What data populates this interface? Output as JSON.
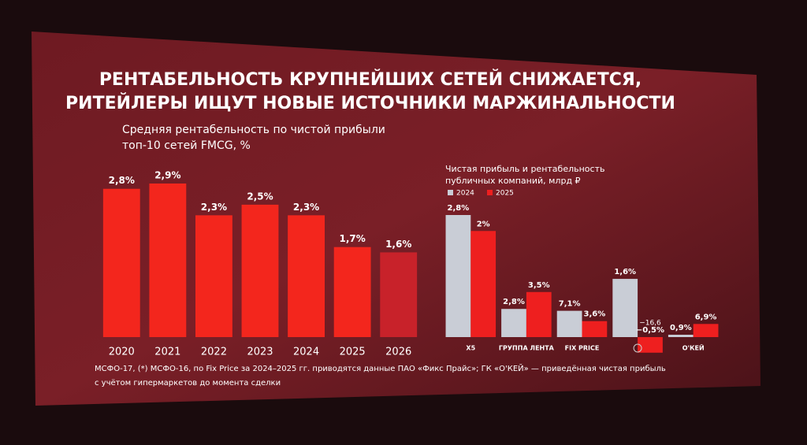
{
  "header": {
    "title": [
      "РЕНТАБЕЛЬНОСТЬ КРУПНЕЙШИХ СЕТЕЙ СНИЖАЕТСЯ,",
      "РИТЕЙЛЕРЫ ИЩУТ НОВЫЕ ИСТОЧНИКИ МАРЖИНАЛЬНОСТИ"
    ]
  },
  "chart_data": [
    {
      "type": "bar",
      "title": [
        "Средняя рентабельность по чистой прибыли",
        "топ-10 сетей FMCG, %"
      ],
      "categories": [
        "2020",
        "2021",
        "2022",
        "2023",
        "2024",
        "2025",
        "2026"
      ],
      "values": [
        2.8,
        2.9,
        2.3,
        2.5,
        2.3,
        1.7,
        1.6
      ],
      "value_labels": [
        "2,8%",
        "2,9%",
        "2,3%",
        "2,5%",
        "2,3%",
        "1,7%",
        "1,6%"
      ],
      "colors": [
        "#f3261d",
        "#f3261d",
        "#f3261d",
        "#f3261d",
        "#f3261d",
        "#f3261d",
        "#c8222a"
      ]
    },
    {
      "type": "grouped_bar",
      "title": [
        "Чистая прибыль и рентабельность",
        "публичных компаний, млрд ₽"
      ],
      "categories": [
        "X5",
        "ГРУППА ЛЕНТА",
        "FIX PRICE",
        null,
        "О'КЕЙ"
      ],
      "series": [
        {
          "name": "2024",
          "color": "#c9cdd6",
          "values": [
            130,
            30,
            28,
            62,
            2.5
          ],
          "value_labels": [
            null,
            null,
            null,
            null,
            null
          ],
          "margin_labels": [
            "2,8%",
            "2,8%",
            "7,1%",
            "1,6%",
            "0,9%"
          ]
        },
        {
          "name": "2025",
          "color": "#ee1f1f",
          "values": [
            113,
            48,
            17,
            -16.6,
            14
          ],
          "value_labels": [
            null,
            null,
            null,
            "−16,6",
            null
          ],
          "margin_labels": [
            "2%",
            "3,5%",
            "3,6%",
            "−0,5%",
            "6,9%"
          ]
        }
      ]
    }
  ],
  "footnote": [
    "МСФО-17, (*) МСФО-16, по Fix Price за 2024–2025 гг. приводятся данные ПАО «Фикс Прайс»; ГК «О'КЕЙ» — приведённая чистая прибыль",
    "с учётом гипермаркетов до момента сделки"
  ]
}
